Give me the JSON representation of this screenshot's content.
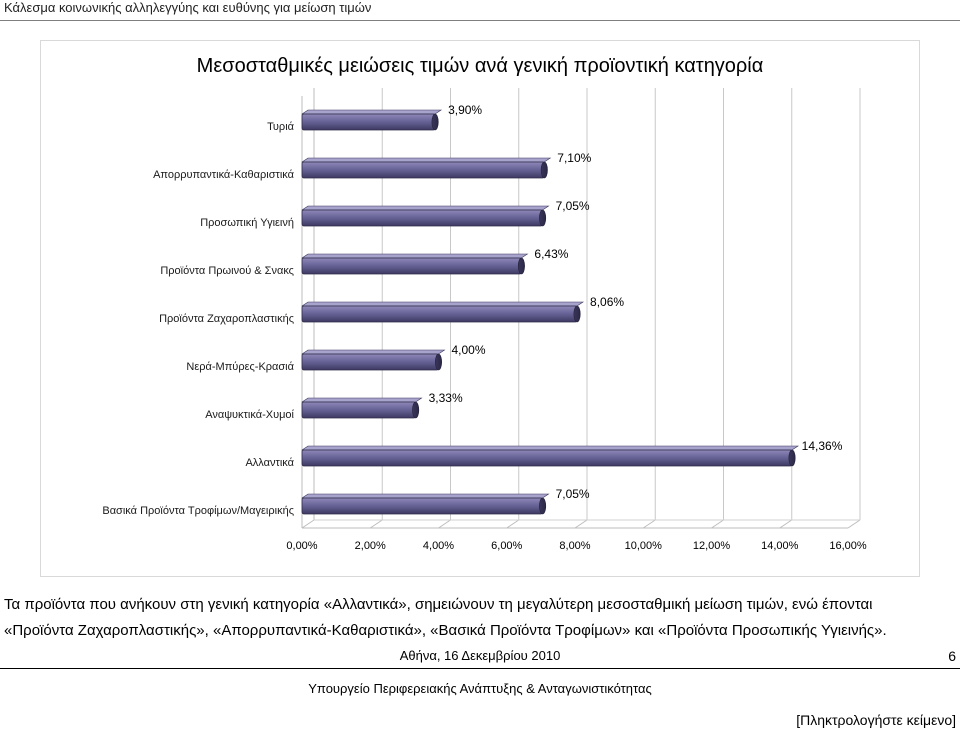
{
  "header": {
    "title": "Κάλεσμα κοινωνικής αλληλεγγύης και ευθύνης για μείωση τιμών"
  },
  "chart_data": {
    "type": "bar",
    "orientation": "horizontal",
    "title": "Μεσοσταθμικές μειώσεις τιμών ανά γενική προϊοντική κατηγορία",
    "categories": [
      "Τυριά",
      "Απορρυπαντικά-Καθαριστικά",
      "Προσωπική Υγιεινή",
      "Προϊόντα Πρωινού & Σνακς",
      "Προϊόντα Ζαχαροπλαστικής",
      "Νερά-Μπύρες-Κρασιά",
      "Αναψυκτικά-Χυμοί",
      "Αλλαντικά",
      "Βασικά Προϊόντα Τροφίμων/Μαγειρικής"
    ],
    "values": [
      3.9,
      7.1,
      7.05,
      6.43,
      8.06,
      4.0,
      3.33,
      14.36,
      7.05
    ],
    "value_labels": [
      "3,90%",
      "7,10%",
      "7,05%",
      "6,43%",
      "8,06%",
      "4,00%",
      "3,33%",
      "14,36%",
      "7,05%"
    ],
    "xlim": [
      0,
      16
    ],
    "xticks": [
      0,
      2,
      4,
      6,
      8,
      10,
      12,
      14,
      16
    ],
    "xtick_labels": [
      "0,00%",
      "2,00%",
      "4,00%",
      "6,00%",
      "8,00%",
      "10,00%",
      "12,00%",
      "14,00%",
      "16,00%"
    ],
    "grid": true,
    "bar_color": "#5f5a8a"
  },
  "body": {
    "line1": "Τα προϊόντα που ανήκουν στη γενική κατηγορία «Αλλαντικά», σημειώνουν τη μεγαλύτερη μεσοσταθμική μείωση τιμών, ενώ έπονται",
    "line2": "«Προϊόντα Ζαχαροπλαστικής», «Απορρυπαντικά-Καθαριστικά», «Βασικά Προϊόντα Τροφίμων» και «Προϊόντα Προσωπικής Υγιεινής»."
  },
  "footer": {
    "date": "Αθήνα, 16 Δεκεμβρίου 2010",
    "page_number": "6",
    "ministry": "Υπουργείο Περιφερειακής Ανάπτυξης & Ανταγωνιστικότητας",
    "placeholder": "[Πληκτρολογήστε κείμενο]"
  }
}
